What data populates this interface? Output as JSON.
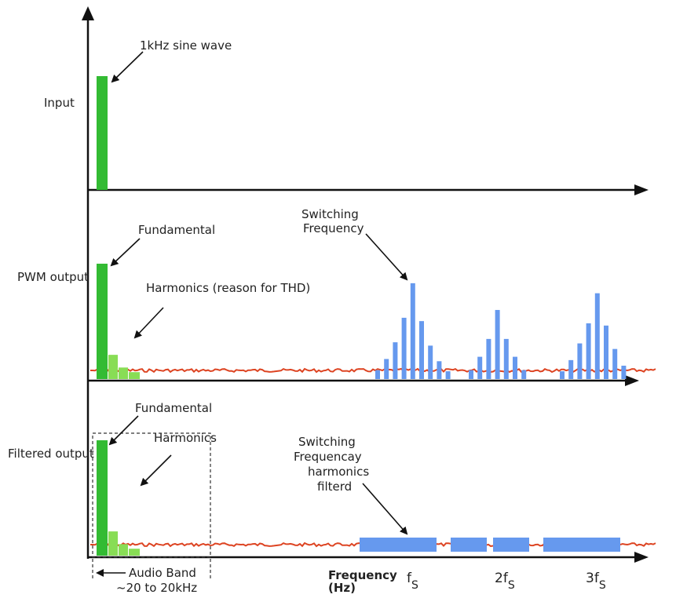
{
  "colors": {
    "axis": "#111111",
    "fundamental": "#33bb33",
    "harmonic": "#88dd55",
    "switching": "#6699ee",
    "noise": "#dd4422",
    "annotation": "#111111"
  },
  "panels": {
    "input": {
      "row_label": "Input",
      "annotation": "1kHz sine wave",
      "bars": [
        {
          "kind": "fundamental",
          "level": 1.0
        }
      ]
    },
    "pwm": {
      "row_label": "PWM output",
      "fundamental_label": "Fundamental",
      "harmonics_label": "Harmonics (reason for THD)",
      "switching_label_line1": "Switching",
      "switching_label_line2": "Frequency",
      "bars": [
        {
          "kind": "fundamental",
          "level": 1.0
        },
        {
          "kind": "harmonic",
          "level": 0.21
        },
        {
          "kind": "harmonic",
          "level": 0.1
        },
        {
          "kind": "harmonic",
          "level": 0.06
        }
      ],
      "switching_groups": [
        {
          "center": "fS",
          "levels": [
            0.08,
            0.18,
            0.33,
            0.55,
            0.86,
            0.52,
            0.3,
            0.16,
            0.07
          ]
        },
        {
          "center": "2fS",
          "levels": [
            0.08,
            0.2,
            0.36,
            0.62,
            0.36,
            0.2,
            0.08
          ]
        },
        {
          "center": "3fS",
          "levels": [
            0.07,
            0.17,
            0.32,
            0.5,
            0.77,
            0.48,
            0.27,
            0.12
          ]
        }
      ]
    },
    "filtered": {
      "row_label": "Filtered output",
      "fundamental_label": "Fundamental",
      "harmonics_label": "Harmonics",
      "switching_label_line1": "Switching",
      "switching_label_line2": "Frequencay",
      "switching_label_line3": "harmonics",
      "switching_label_line4": "filterd",
      "bars": [
        {
          "kind": "fundamental",
          "level": 1.0
        },
        {
          "kind": "harmonic",
          "level": 0.21
        },
        {
          "kind": "harmonic",
          "level": 0.1
        },
        {
          "kind": "harmonic",
          "level": 0.06
        }
      ],
      "switching_blocks": 4
    }
  },
  "axis": {
    "audio_band_line1": "Audio Band",
    "audio_band_line2": "~20 to 20kHz",
    "frequency_line1": "Frequency",
    "frequency_line2": "(Hz)",
    "tick_fs": "f",
    "tick_fs_sub": "S",
    "tick_2fs": "2f",
    "tick_2fs_sub": "S",
    "tick_3fs": "3f",
    "tick_3fs_sub": "S"
  }
}
